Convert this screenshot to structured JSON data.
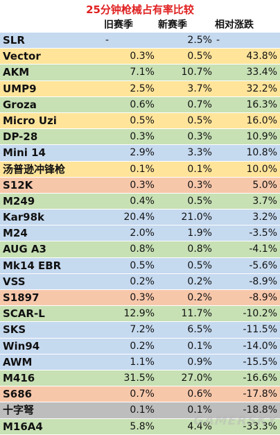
{
  "title": "25分钟枪械占有率比较",
  "headers": {
    "name": "",
    "old": "旧赛季",
    "new": "新赛季",
    "rel": "相对涨跌"
  },
  "colors": {
    "blue": "#c5d9ef",
    "yellow": "#ffe49a",
    "green": "#c7e0b4",
    "orange": "#f7c7aa",
    "gray": "#bdbdbd",
    "title": "#e02020"
  },
  "chart_data": {
    "type": "table",
    "title": "25分钟枪械占有率比较",
    "columns": [
      "",
      "旧赛季",
      "新赛季",
      "相对涨跌"
    ],
    "rows": [
      {
        "name": "SLR",
        "old": "-",
        "new": "2.5%",
        "rel": "-",
        "color": "blue"
      },
      {
        "name": "Vector",
        "old": "0.3%",
        "new": "0.5%",
        "rel": "43.8%",
        "color": "yellow"
      },
      {
        "name": "AKM",
        "old": "7.1%",
        "new": "10.7%",
        "rel": "33.4%",
        "color": "green"
      },
      {
        "name": "UMP9",
        "old": "2.5%",
        "new": "3.7%",
        "rel": "32.2%",
        "color": "yellow"
      },
      {
        "name": "Groza",
        "old": "0.6%",
        "new": "0.7%",
        "rel": "16.3%",
        "color": "green"
      },
      {
        "name": "Micro Uzi",
        "old": "0.5%",
        "new": "0.5%",
        "rel": "16.0%",
        "color": "yellow"
      },
      {
        "name": "DP-28",
        "old": "0.3%",
        "new": "0.3%",
        "rel": "10.9%",
        "color": "green"
      },
      {
        "name": "Mini 14",
        "old": "2.9%",
        "new": "3.3%",
        "rel": "10.8%",
        "color": "blue"
      },
      {
        "name": "汤普逊冲锋枪",
        "old": "0.1%",
        "new": "0.1%",
        "rel": "10.0%",
        "color": "yellow"
      },
      {
        "name": "S12K",
        "old": "0.3%",
        "new": "0.3%",
        "rel": "5.0%",
        "color": "orange"
      },
      {
        "name": "M249",
        "old": "0.4%",
        "new": "0.5%",
        "rel": "3.7%",
        "color": "green"
      },
      {
        "name": "Kar98k",
        "old": "20.4%",
        "new": "21.0%",
        "rel": "3.2%",
        "color": "blue"
      },
      {
        "name": "M24",
        "old": "2.0%",
        "new": "1.9%",
        "rel": "-3.5%",
        "color": "blue"
      },
      {
        "name": "AUG A3",
        "old": "0.8%",
        "new": "0.8%",
        "rel": "-4.1%",
        "color": "green"
      },
      {
        "name": "Mk14 EBR",
        "old": "0.5%",
        "new": "0.5%",
        "rel": "-5.6%",
        "color": "blue"
      },
      {
        "name": "VSS",
        "old": "0.2%",
        "new": "0.2%",
        "rel": "-8.9%",
        "color": "blue"
      },
      {
        "name": "S1897",
        "old": "0.3%",
        "new": "0.2%",
        "rel": "-8.9%",
        "color": "orange"
      },
      {
        "name": "SCAR-L",
        "old": "12.9%",
        "new": "11.7%",
        "rel": "-10.2%",
        "color": "green"
      },
      {
        "name": "SKS",
        "old": "7.2%",
        "new": "6.5%",
        "rel": "-11.5%",
        "color": "blue"
      },
      {
        "name": "Win94",
        "old": "0.2%",
        "new": "0.1%",
        "rel": "-14.0%",
        "color": "blue"
      },
      {
        "name": "AWM",
        "old": "1.1%",
        "new": "0.9%",
        "rel": "-15.5%",
        "color": "blue"
      },
      {
        "name": "M416",
        "old": "31.5%",
        "new": "27.0%",
        "rel": "-16.6%",
        "color": "green"
      },
      {
        "name": "S686",
        "old": "0.7%",
        "new": "0.6%",
        "rel": "-17.8%",
        "color": "orange"
      },
      {
        "name": "十字弩",
        "old": "0.1%",
        "new": "0.1%",
        "rel": "-18.8%",
        "color": "gray"
      },
      {
        "name": "M16A4",
        "old": "5.8%",
        "new": "4.4%",
        "rel": "-33.3%",
        "color": "green"
      }
    ]
  }
}
